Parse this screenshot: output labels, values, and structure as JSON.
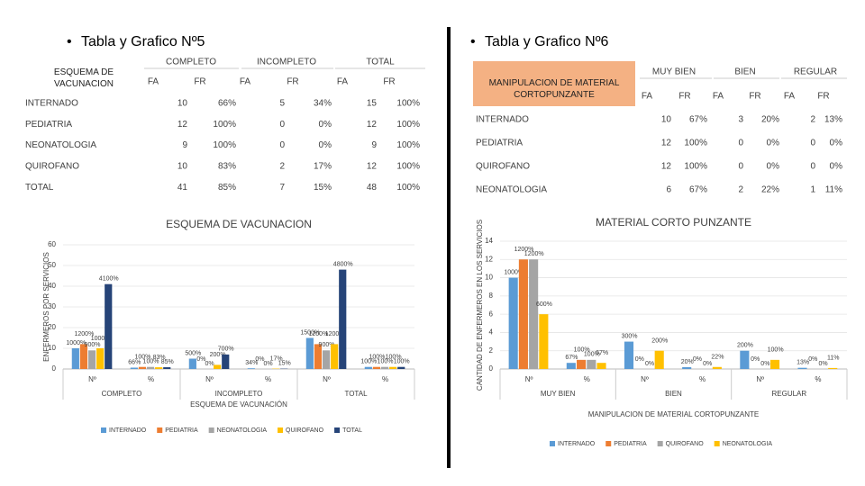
{
  "left": {
    "heading": "Tabla y Grafico Nº5",
    "table": {
      "corner": "ESQUEMA DE VACUNACION",
      "groups": [
        "COMPLETO",
        "INCOMPLETO",
        "TOTAL"
      ],
      "subheaders": [
        "FA",
        "FR",
        "FA",
        "FR",
        "FA",
        "FR"
      ],
      "rows": [
        [
          "INTERNADO",
          "10",
          "66%",
          "5",
          "34%",
          "15",
          "100%"
        ],
        [
          "PEDIATRIA",
          "12",
          "100%",
          "0",
          "0%",
          "12",
          "100%"
        ],
        [
          "NEONATOLOGIA",
          "9",
          "100%",
          "0",
          "0%",
          "9",
          "100%"
        ],
        [
          "QUIROFANO",
          "10",
          "83%",
          "2",
          "17%",
          "12",
          "100%"
        ],
        [
          "TOTAL",
          "41",
          "85%",
          "7",
          "15%",
          "48",
          "100%"
        ]
      ]
    }
  },
  "right": {
    "heading": "Tabla y Grafico Nº6",
    "table": {
      "corner": "MANIPULACION DE MATERIAL CORTOPUNZANTE",
      "groups": [
        "MUY BIEN",
        "BIEN",
        "REGULAR"
      ],
      "subheaders": [
        "FA",
        "FR",
        "FA",
        "FR",
        "FA",
        "FR"
      ],
      "rows": [
        [
          "INTERNADO",
          "10",
          "67%",
          "3",
          "20%",
          "2",
          "13%"
        ],
        [
          "PEDIATRIA",
          "12",
          "100%",
          "0",
          "0%",
          "0",
          "0%"
        ],
        [
          "QUIROFANO",
          "12",
          "100%",
          "0",
          "0%",
          "0",
          "0%"
        ],
        [
          "NEONATOLOGIA",
          "6",
          "67%",
          "2",
          "22%",
          "1",
          "11%"
        ]
      ]
    }
  },
  "chart_data": [
    {
      "type": "bar",
      "title": "ESQUEMA DE VACUNACION",
      "x_label": "ESQUEMA DE VACUNACIÓN",
      "y_label": "ENFERMEROS POR SERVICIOS",
      "groups": [
        "COMPLETO",
        "INCOMPLETO",
        "TOTAL"
      ],
      "categories": [
        "Nº",
        "%",
        "Nº",
        "%",
        "Nº",
        "%"
      ],
      "ylim": [
        0,
        60
      ],
      "yticks": [
        0,
        10,
        20,
        30,
        40,
        50,
        60
      ],
      "grid": true,
      "series": [
        {
          "name": "INTERNADO",
          "color": "#5b9bd5",
          "values": [
            10,
            0.66,
            5,
            0.34,
            15,
            1
          ],
          "value_labels": [
            "1000%",
            "66%",
            "500%",
            "34%",
            "1500%",
            "100%"
          ]
        },
        {
          "name": "PEDIATRIA",
          "color": "#ed7d31",
          "values": [
            12,
            1,
            0,
            0,
            12,
            1
          ],
          "value_labels": [
            "1200%",
            "100%",
            "0%",
            "0%",
            "1200%",
            "100%"
          ]
        },
        {
          "name": "NEONATOLOGIA",
          "color": "#a5a5a5",
          "values": [
            9,
            1,
            0,
            0,
            9,
            1
          ],
          "value_labels": [
            "900%",
            "100%",
            "0%",
            "0%",
            "900%",
            "100%"
          ]
        },
        {
          "name": "QUIROFANO",
          "color": "#ffc000",
          "values": [
            10,
            0.83,
            2,
            0.17,
            12,
            1
          ],
          "value_labels": [
            "1000%",
            "83%",
            "200%",
            "17%",
            "1200%",
            "100%"
          ]
        },
        {
          "name": "TOTAL",
          "color": "#264478",
          "values": [
            41,
            0.85,
            7,
            0.15,
            48,
            1
          ],
          "value_labels": [
            "4100%",
            "85%",
            "700%",
            "15%",
            "4800%",
            "100%"
          ]
        }
      ]
    },
    {
      "type": "bar",
      "title": "MATERIAL CORTO PUNZANTE",
      "x_label": "MANIPULACION DE MATERIAL CORTOPUNZANTE",
      "y_label": "CANTIDAD DE ENFERMEROS EN LOS SERVICIOS",
      "groups": [
        "MUY BIEN",
        "BIEN",
        "REGULAR"
      ],
      "categories": [
        "Nº",
        "%",
        "Nº",
        "%",
        "Nº",
        "%"
      ],
      "ylim": [
        0,
        14
      ],
      "yticks": [
        0,
        2,
        4,
        6,
        8,
        10,
        12,
        14
      ],
      "grid": true,
      "series": [
        {
          "name": "INTERNADO",
          "color": "#5b9bd5",
          "values": [
            10,
            0.67,
            3,
            0.2,
            2,
            0.13
          ],
          "value_labels": [
            "1000%",
            "67%",
            "300%",
            "20%",
            "200%",
            "13%"
          ]
        },
        {
          "name": "PEDIATRIA",
          "color": "#ed7d31",
          "values": [
            12,
            1,
            0,
            0,
            0,
            0
          ],
          "value_labels": [
            "1200%",
            "100%",
            "0%",
            "0%",
            "0%",
            "0%"
          ]
        },
        {
          "name": "QUIROFANO",
          "color": "#a5a5a5",
          "values": [
            12,
            1,
            0,
            0,
            0,
            0
          ],
          "value_labels": [
            "1200%",
            "100%",
            "0%",
            "0%",
            "0%",
            "0%"
          ]
        },
        {
          "name": "NEONATOLOGIA",
          "color": "#ffc000",
          "values": [
            6,
            0.67,
            2,
            0.22,
            1,
            0.11
          ],
          "value_labels": [
            "600%",
            "67%",
            "200%",
            "22%",
            "100%",
            "11%"
          ]
        }
      ]
    }
  ]
}
